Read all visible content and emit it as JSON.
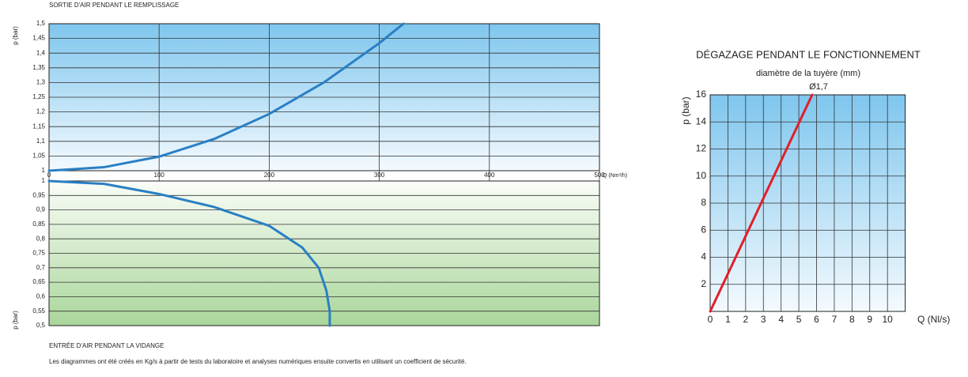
{
  "chart_data": [
    {
      "type": "line",
      "title": "SORTIE D'AIR PENDANT LE REMPLISSAGE",
      "ylabel": "p (bar)",
      "xlabel": "Q (Nm³/h)",
      "x": [
        0,
        50,
        100,
        150,
        200,
        250,
        300,
        322
      ],
      "series": [
        {
          "color": "#2a7fc4",
          "values": [
            1.0,
            1.012,
            1.048,
            1.108,
            1.193,
            1.301,
            1.434,
            1.5
          ]
        }
      ],
      "xlim": [
        0,
        500
      ],
      "xticks": [
        0,
        100,
        200,
        300,
        400,
        500
      ],
      "ylim": [
        1,
        1.5
      ],
      "yticks": [
        1,
        {
          "value": 1.05,
          "label": "1,05"
        },
        {
          "value": 1.1,
          "label": "1,1"
        },
        {
          "value": 1.15,
          "label": "1,15"
        },
        {
          "value": 1.2,
          "label": "1,2"
        },
        {
          "value": 1.25,
          "label": "1,25"
        },
        {
          "value": 1.3,
          "label": "1,3"
        },
        {
          "value": 1.35,
          "label": "1,35"
        },
        {
          "value": 1.4,
          "label": "1,4"
        },
        {
          "value": 1.45,
          "label": "1,45"
        },
        {
          "value": 1.5,
          "label": "1,5"
        }
      ],
      "grid": true
    },
    {
      "type": "line",
      "title": "ENTRÉE D'AIR PENDANT LA VIDANGE",
      "ylabel": "p (bar)",
      "x": [
        0,
        50,
        100,
        150,
        200,
        230,
        245,
        252,
        255,
        255
      ],
      "series": [
        {
          "color": "#2a7fc4",
          "values": [
            1.0,
            0.99,
            0.955,
            0.91,
            0.845,
            0.77,
            0.7,
            0.62,
            0.55,
            0.5
          ]
        }
      ],
      "xlim": [
        0,
        500
      ],
      "ylim": [
        0.5,
        1
      ],
      "yticks": [
        {
          "value": 0.5,
          "label": "0,5"
        },
        {
          "value": 0.55,
          "label": "0,55"
        },
        {
          "value": 0.6,
          "label": "0,6"
        },
        {
          "value": 0.65,
          "label": "0,65"
        },
        {
          "value": 0.7,
          "label": "0,7"
        },
        {
          "value": 0.75,
          "label": "0,75"
        },
        {
          "value": 0.8,
          "label": "0,8"
        },
        {
          "value": 0.85,
          "label": "0,85"
        },
        {
          "value": 0.9,
          "label": "0,9"
        },
        {
          "value": 0.95,
          "label": "0,95"
        },
        1
      ],
      "grid": true
    },
    {
      "type": "line",
      "title": "DÉGAZAGE PENDANT LE FONCTIONNEMENT",
      "subtitle": "diamètre de la tuyère (mm)",
      "ylabel": "p (bar)",
      "xlabel": "Q (Nl/s)",
      "x": [
        0,
        5.75
      ],
      "series": [
        {
          "name": "Ø1,7",
          "color": "#e0202a",
          "values": [
            0,
            16
          ]
        }
      ],
      "xlim": [
        0,
        11
      ],
      "xticks": [
        0,
        1,
        2,
        3,
        4,
        5,
        6,
        7,
        8,
        9,
        10
      ],
      "ylim": [
        0,
        16
      ],
      "yticks": [
        2,
        4,
        6,
        8,
        10,
        12,
        14,
        16
      ],
      "grid": true
    }
  ],
  "footnote": "Les diagrammes ont été créés en Kg/s à partir de tests du laboratoire et analyses numériques ensuite convertis en utilisant un coefficient de sécurité."
}
